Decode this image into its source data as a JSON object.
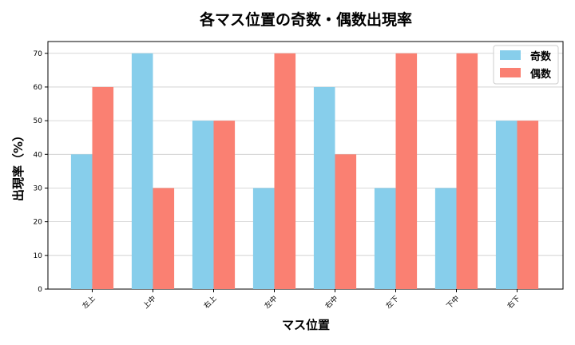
{
  "chart_data": {
    "type": "bar",
    "title": "各マス位置の奇数・偶数出現率",
    "xlabel": "マス位置",
    "ylabel": "出現率（%）",
    "categories": [
      "左上",
      "上中",
      "右上",
      "左中",
      "右中",
      "左下",
      "下中",
      "右下"
    ],
    "series": [
      {
        "name": "奇数",
        "values": [
          40,
          70,
          50,
          30,
          60,
          30,
          30,
          50
        ],
        "color": "#87CEEB"
      },
      {
        "name": "偶数",
        "values": [
          60,
          30,
          50,
          70,
          40,
          70,
          70,
          50
        ],
        "color": "#FA8072"
      }
    ],
    "ylim": [
      0,
      73.5
    ],
    "yticks": [
      0,
      10,
      20,
      30,
      40,
      50,
      60,
      70
    ],
    "grid": "y-axis",
    "legend_position": "top-right"
  }
}
